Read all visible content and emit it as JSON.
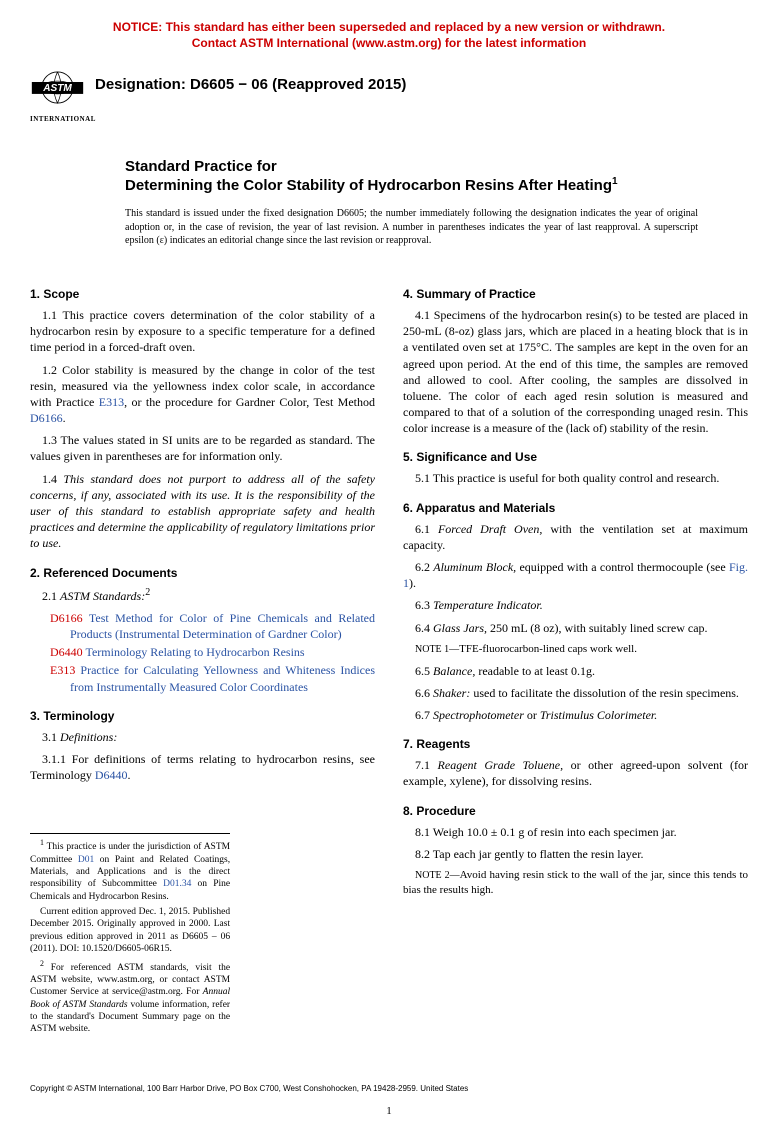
{
  "notice": {
    "line1": "NOTICE: This standard has either been superseded and replaced by a new version or withdrawn.",
    "line2": "Contact ASTM International (www.astm.org) for the latest information"
  },
  "logo_text": "INTERNATIONAL",
  "designation": "Designation: D6605 − 06 (Reapproved 2015)",
  "title_lead": "Standard Practice for",
  "title_main": "Determining the Color Stability of Hydrocarbon Resins After Heating",
  "title_sup": "1",
  "intro": "This standard is issued under the fixed designation D6605; the number immediately following the designation indicates the year of original adoption or, in the case of revision, the year of last revision. A number in parentheses indicates the year of last reapproval. A superscript epsilon (ε) indicates an editorial change since the last revision or reapproval.",
  "sections": {
    "s1": {
      "head": "1. Scope",
      "p1": "1.1 This practice covers determination of the color stability of a hydrocarbon resin by exposure to a specific temperature for a defined time period in a forced-draft oven.",
      "p2a": "1.2 Color stability is measured by the change in color of the test resin, measured via the yellowness index color scale, in accordance with Practice ",
      "p2link1": "E313",
      "p2b": ", or the procedure for Gardner Color, Test Method ",
      "p2link2": "D6166",
      "p2c": ".",
      "p3": "1.3 The values stated in SI units are to be regarded as standard. The values given in parentheses are for information only.",
      "p4": "1.4 This standard does not purport to address all of the safety concerns, if any, associated with its use. It is the responsibility of the user of this standard to establish appropriate safety and health practices and determine the applicability of regulatory limitations prior to use."
    },
    "s2": {
      "head": "2. Referenced Documents",
      "p1a": "2.1 ",
      "p1b": "ASTM Standards:",
      "p1sup": "2",
      "r1code": "D6166",
      "r1text": " Test Method for Color of Pine Chemicals and Related Products (Instrumental Determination of Gardner Color)",
      "r2code": "D6440",
      "r2text": " Terminology Relating to Hydrocarbon Resins",
      "r3code": "E313",
      "r3text": " Practice for Calculating Yellowness and Whiteness Indices from Instrumentally Measured Color Coordinates"
    },
    "s3": {
      "head": "3. Terminology",
      "p1": "3.1 Definitions:",
      "p2a": "3.1.1 For definitions of terms relating to hydrocarbon resins, see Terminology ",
      "p2link": "D6440",
      "p2b": "."
    },
    "s4": {
      "head": "4. Summary of Practice",
      "p1": "4.1 Specimens of the hydrocarbon resin(s) to be tested are placed in 250-mL (8-oz) glass jars, which are placed in a heating block that is in a ventilated oven set at 175°C. The samples are kept in the oven for an agreed upon period. At the end of this time, the samples are removed and allowed to cool. After cooling, the samples are dissolved in toluene. The color of each aged resin solution is measured and compared to that of a solution of the corresponding unaged resin. This color increase is a measure of the (lack of) stability of the resin."
    },
    "s5": {
      "head": "5. Significance and Use",
      "p1": "5.1 This practice is useful for both quality control and research."
    },
    "s6": {
      "head": "6. Apparatus and Materials",
      "p1a": "6.1 ",
      "p1b": "Forced Draft Oven,",
      "p1c": " with the ventilation set at maximum capacity.",
      "p2a": "6.2 ",
      "p2b": "Aluminum Block,",
      "p2c": " equipped with a control thermocouple (see ",
      "p2link": "Fig. 1",
      "p2d": ").",
      "p3a": "6.3 ",
      "p3b": "Temperature Indicator.",
      "p4a": "6.4 ",
      "p4b": "Glass Jars,",
      "p4c": " 250 mL (8 oz), with suitably lined screw cap.",
      "note1label": "NOTE 1—",
      "note1": "TFE-fluorocarbon-lined caps work well.",
      "p5a": "6.5 ",
      "p5b": "Balance,",
      "p5c": " readable to at least 0.1g.",
      "p6a": "6.6 ",
      "p6b": "Shaker:",
      "p6c": " used to facilitate the dissolution of the resin specimens.",
      "p7a": "6.7 ",
      "p7b": "Spectrophotometer",
      "p7c": " or ",
      "p7d": "Tristimulus Colorimeter."
    },
    "s7": {
      "head": "7. Reagents",
      "p1a": "7.1 ",
      "p1b": "Reagent Grade Toluene,",
      "p1c": " or other agreed-upon solvent (for example, xylene), for dissolving resins."
    },
    "s8": {
      "head": "8. Procedure",
      "p1": "8.1 Weigh 10.0 ± 0.1 g of resin into each specimen jar.",
      "p2": "8.2 Tap each jar gently to flatten the resin layer.",
      "note2label": "NOTE 2—",
      "note2": "Avoid having resin stick to the wall of the jar, since this tends to bias the results high."
    }
  },
  "footnotes": {
    "f1a": "1 This practice is under the jurisdiction of ASTM Committee ",
    "f1link1": "D01",
    "f1b": " on Paint and Related Coatings, Materials, and Applications and is the direct responsibility of Subcommittee ",
    "f1link2": "D01.34",
    "f1c": " on Pine Chemicals and Hydrocarbon Resins.",
    "f2": "Current edition approved Dec. 1, 2015. Published December 2015. Originally approved in 2000. Last previous edition approved in 2011 as D6605 – 06 (2011). DOI: 10.1520/D6605-06R15.",
    "f3a": "2 For referenced ASTM standards, visit the ASTM website, www.astm.org, or contact ASTM Customer Service at service@astm.org. For ",
    "f3b": "Annual Book of ASTM Standards",
    "f3c": " volume information, refer to the standard's Document Summary page on the ASTM website."
  },
  "copyright": "Copyright © ASTM International, 100 Barr Harbor Drive, PO Box C700, West Conshohocken, PA 19428-2959. United States",
  "pagenum": "1"
}
